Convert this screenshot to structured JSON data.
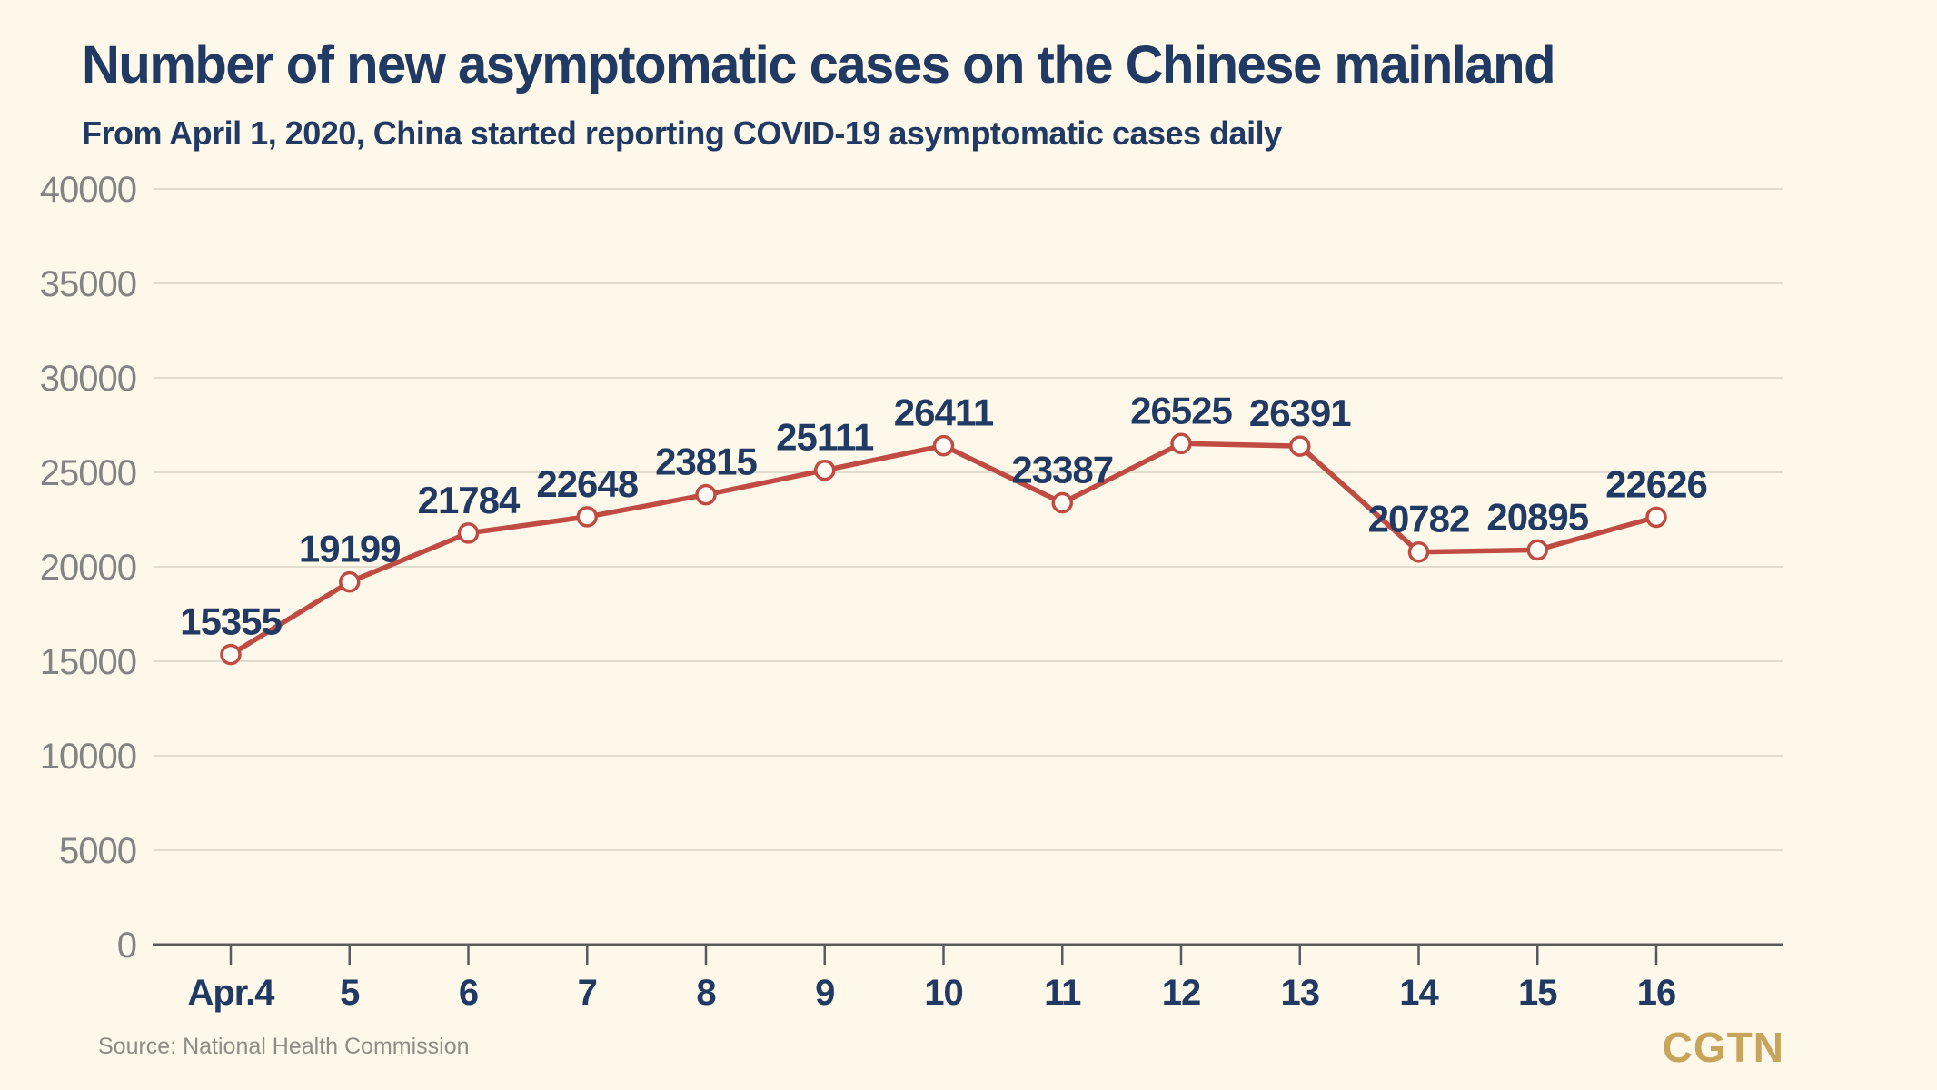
{
  "header": {
    "title": "Number of new asymptomatic cases on the Chinese mainland",
    "subtitle": "From April 1, 2020, China started reporting COVID-19 asymptomatic cases daily"
  },
  "chart_data": {
    "type": "line",
    "title": "Number of new asymptomatic cases on the Chinese mainland",
    "subtitle": "From April 1, 2020, China started reporting COVID-19 asymptomatic cases daily",
    "categories": [
      "Apr.4",
      "5",
      "6",
      "7",
      "8",
      "9",
      "10",
      "11",
      "12",
      "13",
      "14",
      "15",
      "16"
    ],
    "values": [
      15355,
      19199,
      21784,
      22648,
      23815,
      25111,
      26411,
      23387,
      26525,
      26391,
      20782,
      20895,
      22626
    ],
    "ylim": [
      0,
      40000
    ],
    "yticks": [
      0,
      5000,
      10000,
      15000,
      20000,
      25000,
      30000,
      35000,
      40000
    ],
    "grid": "horizontal",
    "marker": "open-circle",
    "data_labels": true,
    "legend": "none",
    "xlabel": "",
    "ylabel": ""
  },
  "footer": {
    "source": "Source: National Health Commission",
    "logo": "CGTN"
  },
  "colors": {
    "background": "#FDF8E9",
    "line_red": "#C04B43",
    "marker_fill": "#FFFDF6",
    "navy_text": "#203A64",
    "grid_gray": "#E0DCCE",
    "axis_gray": "#5A5A5A",
    "ytick_gray": "#838383",
    "source_gray": "#8D8D85",
    "logo_gold": "#C7A45A"
  }
}
